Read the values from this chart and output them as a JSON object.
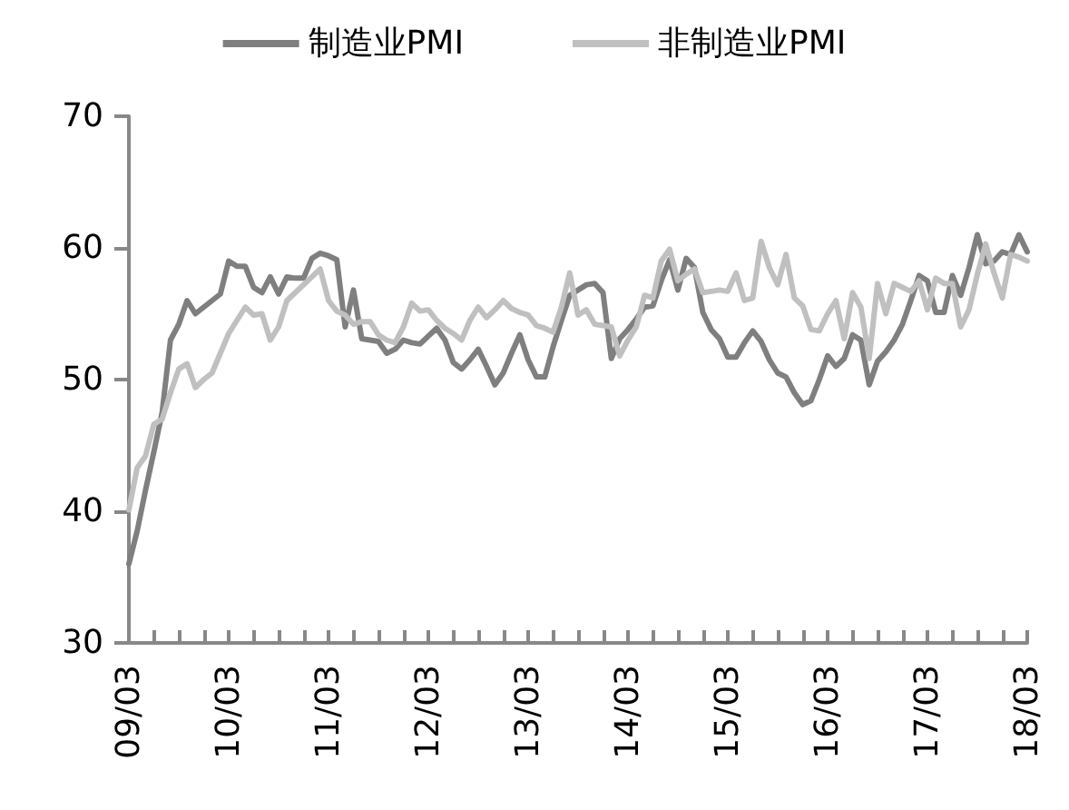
{
  "chart_data": {
    "type": "line",
    "categories": [
      "09/03",
      null,
      null,
      null,
      null,
      null,
      null,
      null,
      null,
      null,
      null,
      null,
      "10/03",
      null,
      null,
      null,
      null,
      null,
      null,
      null,
      null,
      null,
      null,
      null,
      "11/03",
      null,
      null,
      null,
      null,
      null,
      null,
      null,
      null,
      null,
      null,
      null,
      "12/03",
      null,
      null,
      null,
      null,
      null,
      null,
      null,
      null,
      null,
      null,
      null,
      "13/03",
      null,
      null,
      null,
      null,
      null,
      null,
      null,
      null,
      null,
      null,
      null,
      "14/03",
      null,
      null,
      null,
      null,
      null,
      null,
      null,
      null,
      null,
      null,
      null,
      "15/03",
      null,
      null,
      null,
      null,
      null,
      null,
      null,
      null,
      null,
      null,
      null,
      "16/03",
      null,
      null,
      null,
      null,
      null,
      null,
      null,
      null,
      null,
      null,
      null,
      "17/03",
      null,
      null,
      null,
      null,
      null,
      null,
      null,
      null,
      null,
      null,
      null,
      "18/03"
    ],
    "series": [
      {
        "name": "制造业PMI",
        "color": "#7f7f7f",
        "values": [
          36.0,
          38.5,
          41.6,
          44.5,
          47.5,
          53.0,
          54.2,
          56.0,
          55.0,
          55.5,
          56.0,
          56.5,
          59.0,
          58.6,
          58.6,
          57.0,
          56.6,
          57.8,
          56.5,
          57.8,
          57.7,
          57.7,
          59.2,
          59.6,
          59.4,
          59.1,
          54.0,
          56.8,
          53.1,
          53.0,
          52.9,
          52.0,
          52.3,
          53.0,
          52.8,
          52.7,
          53.3,
          53.9,
          53.0,
          51.3,
          50.8,
          51.5,
          52.3,
          51.0,
          49.6,
          50.5,
          52.0,
          53.4,
          51.5,
          50.2,
          50.2,
          52.5,
          54.5,
          56.4,
          56.8,
          57.2,
          57.3,
          56.6,
          51.6,
          53.1,
          53.8,
          54.6,
          55.5,
          55.6,
          57.5,
          59.1,
          56.8,
          59.2,
          58.5,
          55.1,
          53.8,
          53.1,
          51.7,
          51.7,
          52.8,
          53.7,
          52.9,
          51.5,
          50.5,
          50.2,
          49.0,
          48.1,
          48.4,
          50.0,
          51.8,
          51.0,
          51.6,
          53.4,
          53.0,
          49.6,
          51.4,
          52.1,
          53.0,
          54.2,
          56.0,
          57.9,
          57.5,
          55.1,
          55.1,
          57.9,
          56.4,
          58.5,
          61.0,
          58.8,
          59.0,
          59.7,
          59.5,
          61.0,
          59.7
        ]
      },
      {
        "name": "非制造业PMI",
        "color": "#c0c0c0",
        "values": [
          40.1,
          43.3,
          44.2,
          46.6,
          47.0,
          49.0,
          50.8,
          51.2,
          49.4,
          50.0,
          50.5,
          52.0,
          53.5,
          54.5,
          55.5,
          54.9,
          55.0,
          53.0,
          54.0,
          56.0,
          56.6,
          57.2,
          57.8,
          58.4,
          56.0,
          55.2,
          54.9,
          54.2,
          54.4,
          54.4,
          53.4,
          53.0,
          52.8,
          54.0,
          55.8,
          55.2,
          55.3,
          54.5,
          53.9,
          53.5,
          53.0,
          54.5,
          55.5,
          54.7,
          55.3,
          56.0,
          55.4,
          55.1,
          54.9,
          54.1,
          53.9,
          53.6,
          55.5,
          58.1,
          54.9,
          55.3,
          54.2,
          54.1,
          54.0,
          51.8,
          53.0,
          54.0,
          56.4,
          56.2,
          59.0,
          59.9,
          57.5,
          58.0,
          58.4,
          56.6,
          56.7,
          56.8,
          56.7,
          58.1,
          56.0,
          56.2,
          60.5,
          58.5,
          57.2,
          59.5,
          56.2,
          55.6,
          53.8,
          53.7,
          55.0,
          56.0,
          53.1,
          56.6,
          55.5,
          51.6,
          57.3,
          55.0,
          57.3,
          57.0,
          56.7,
          57.5,
          55.3,
          57.7,
          57.3,
          57.3,
          54.0,
          55.3,
          58.0,
          60.3,
          58.1,
          56.2,
          59.5,
          59.3,
          59.0
        ]
      }
    ],
    "ylim": [
      30,
      70
    ],
    "yticks": [
      30,
      40,
      50,
      60,
      70
    ],
    "grid": false,
    "legend": "top",
    "marker": "none",
    "line_style": "solid"
  }
}
